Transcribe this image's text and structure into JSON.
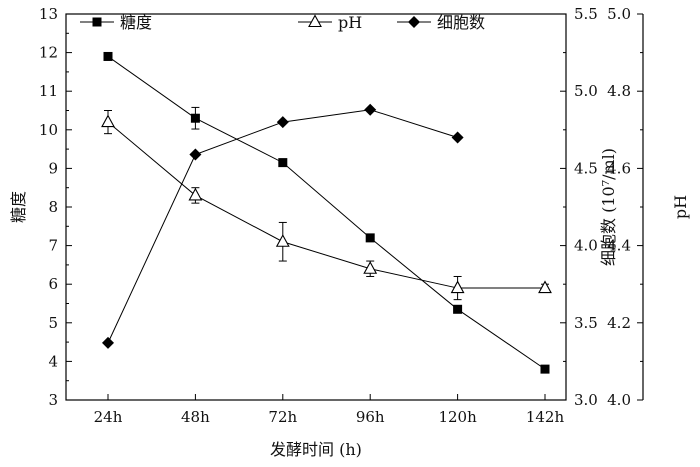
{
  "chart_data": {
    "type": "line",
    "title": "",
    "xlabel": "发酵时间 (h)",
    "categories": [
      "24h",
      "48h",
      "72h",
      "96h",
      "120h",
      "142h"
    ],
    "axes": {
      "left": {
        "label": "糖度",
        "min": 3,
        "max": 13,
        "step": 1,
        "ticks": [
          "3",
          "4",
          "5",
          "6",
          "7",
          "8",
          "9",
          "10",
          "11",
          "12",
          "13"
        ]
      },
      "right1": {
        "label": "细胞数 (10⁷/ml)",
        "min": 3.0,
        "max": 5.5,
        "step": 0.5,
        "ticks": [
          "3.0",
          "3.5",
          "4.0",
          "4.5",
          "5.0",
          "5.5"
        ]
      },
      "right2": {
        "label": "pH",
        "min": 4.0,
        "max": 5.0,
        "step": 0.2,
        "ticks": [
          "4.0",
          "4.2",
          "4.4",
          "4.6",
          "4.8",
          "5.0"
        ]
      }
    },
    "series": [
      {
        "name": "糖度",
        "axis": "left",
        "marker": "square",
        "values": [
          11.9,
          10.3,
          9.15,
          7.2,
          5.35,
          3.8
        ],
        "errors": [
          0,
          0.28,
          0,
          0,
          0,
          0
        ]
      },
      {
        "name": "pH",
        "axis": "left",
        "marker": "triangle-open",
        "values": [
          10.2,
          8.3,
          7.1,
          6.4,
          5.9,
          5.9
        ],
        "errors": [
          0.3,
          0.2,
          0.5,
          0.2,
          0.3,
          0.1
        ]
      },
      {
        "name": "细胞数",
        "axis": "right1",
        "marker": "diamond",
        "values": [
          3.37,
          4.59,
          4.8,
          4.88,
          4.7,
          null
        ]
      }
    ],
    "legend_position": "top"
  }
}
